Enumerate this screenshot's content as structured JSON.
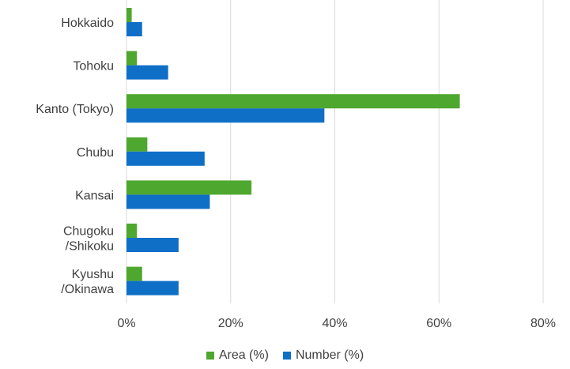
{
  "chart_data": {
    "type": "bar",
    "orientation": "horizontal",
    "categories": [
      [
        "Hokkaido"
      ],
      [
        "Tohoku"
      ],
      [
        "Kanto (Tokyo)"
      ],
      [
        "Chubu"
      ],
      [
        "Kansai"
      ],
      [
        "Chugoku",
        "/Shikoku"
      ],
      [
        "Kyushu",
        "/Okinawa"
      ]
    ],
    "series": [
      {
        "name": "Area (%)",
        "color": "#4ea72e",
        "values": [
          1,
          2,
          64,
          4,
          24,
          2,
          3
        ]
      },
      {
        "name": "Number (%)",
        "color": "#0f6fc6",
        "values": [
          3,
          8,
          38,
          15,
          16,
          10,
          10
        ]
      }
    ],
    "xlim": [
      0,
      80
    ],
    "xticks": [
      0,
      20,
      40,
      60,
      80
    ],
    "xtick_labels": [
      "0%",
      "20%",
      "40%",
      "60%",
      "80%"
    ],
    "grid": "vertical",
    "legend": "bottom"
  }
}
